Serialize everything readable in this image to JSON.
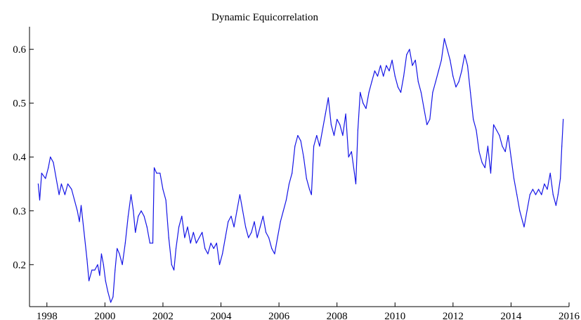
{
  "chart_data": {
    "type": "line",
    "title": "Dynamic Equicorrelation",
    "xlabel": "",
    "ylabel": "",
    "xlim": [
      1997.4,
      2016.0
    ],
    "ylim": [
      0.122,
      0.642
    ],
    "x_ticks": [
      1998,
      2000,
      2002,
      2004,
      2006,
      2008,
      2010,
      2012,
      2014,
      2016
    ],
    "y_ticks": [
      0.2,
      0.3,
      0.4,
      0.5,
      0.6
    ],
    "x_tick_labels": [
      "1998",
      "2000",
      "2002",
      "2004",
      "2006",
      "2008",
      "2010",
      "2012",
      "2014",
      "2016"
    ],
    "y_tick_labels": [
      "0.2",
      "0.3",
      "0.4",
      "0.5",
      "0.6"
    ],
    "grid": false,
    "series": [
      {
        "color": "#1414e6",
        "points": [
          [
            1997.7,
            0.35
          ],
          [
            1997.75,
            0.32
          ],
          [
            1997.82,
            0.37
          ],
          [
            1997.95,
            0.36
          ],
          [
            1998.05,
            0.38
          ],
          [
            1998.12,
            0.4
          ],
          [
            1998.22,
            0.39
          ],
          [
            1998.32,
            0.36
          ],
          [
            1998.42,
            0.33
          ],
          [
            1998.5,
            0.35
          ],
          [
            1998.62,
            0.33
          ],
          [
            1998.72,
            0.35
          ],
          [
            1998.85,
            0.34
          ],
          [
            1998.95,
            0.32
          ],
          [
            1999.05,
            0.3
          ],
          [
            1999.12,
            0.28
          ],
          [
            1999.18,
            0.31
          ],
          [
            1999.3,
            0.25
          ],
          [
            1999.38,
            0.21
          ],
          [
            1999.45,
            0.17
          ],
          [
            1999.55,
            0.19
          ],
          [
            1999.65,
            0.19
          ],
          [
            1999.75,
            0.2
          ],
          [
            1999.82,
            0.18
          ],
          [
            1999.88,
            0.22
          ],
          [
            1999.95,
            0.2
          ],
          [
            2000.02,
            0.17
          ],
          [
            2000.1,
            0.15
          ],
          [
            2000.2,
            0.13
          ],
          [
            2000.28,
            0.14
          ],
          [
            2000.35,
            0.19
          ],
          [
            2000.42,
            0.23
          ],
          [
            2000.5,
            0.22
          ],
          [
            2000.6,
            0.2
          ],
          [
            2000.7,
            0.24
          ],
          [
            2000.8,
            0.29
          ],
          [
            2000.9,
            0.33
          ],
          [
            2000.98,
            0.3
          ],
          [
            2001.05,
            0.26
          ],
          [
            2001.15,
            0.29
          ],
          [
            2001.25,
            0.3
          ],
          [
            2001.35,
            0.29
          ],
          [
            2001.45,
            0.27
          ],
          [
            2001.55,
            0.24
          ],
          [
            2001.65,
            0.24
          ],
          [
            2001.7,
            0.38
          ],
          [
            2001.78,
            0.37
          ],
          [
            2001.9,
            0.37
          ],
          [
            2002.0,
            0.34
          ],
          [
            2002.1,
            0.32
          ],
          [
            2002.2,
            0.25
          ],
          [
            2002.3,
            0.2
          ],
          [
            2002.38,
            0.19
          ],
          [
            2002.45,
            0.23
          ],
          [
            2002.55,
            0.27
          ],
          [
            2002.65,
            0.29
          ],
          [
            2002.75,
            0.25
          ],
          [
            2002.85,
            0.27
          ],
          [
            2002.95,
            0.24
          ],
          [
            2003.05,
            0.26
          ],
          [
            2003.15,
            0.24
          ],
          [
            2003.25,
            0.25
          ],
          [
            2003.35,
            0.26
          ],
          [
            2003.45,
            0.23
          ],
          [
            2003.55,
            0.22
          ],
          [
            2003.65,
            0.24
          ],
          [
            2003.75,
            0.23
          ],
          [
            2003.85,
            0.24
          ],
          [
            2003.95,
            0.2
          ],
          [
            2004.05,
            0.22
          ],
          [
            2004.15,
            0.25
          ],
          [
            2004.25,
            0.28
          ],
          [
            2004.35,
            0.29
          ],
          [
            2004.45,
            0.27
          ],
          [
            2004.55,
            0.3
          ],
          [
            2004.65,
            0.33
          ],
          [
            2004.75,
            0.3
          ],
          [
            2004.85,
            0.27
          ],
          [
            2004.95,
            0.25
          ],
          [
            2005.05,
            0.26
          ],
          [
            2005.15,
            0.28
          ],
          [
            2005.25,
            0.25
          ],
          [
            2005.35,
            0.27
          ],
          [
            2005.45,
            0.29
          ],
          [
            2005.55,
            0.26
          ],
          [
            2005.65,
            0.25
          ],
          [
            2005.75,
            0.23
          ],
          [
            2005.85,
            0.22
          ],
          [
            2005.95,
            0.25
          ],
          [
            2006.05,
            0.28
          ],
          [
            2006.15,
            0.3
          ],
          [
            2006.25,
            0.32
          ],
          [
            2006.35,
            0.35
          ],
          [
            2006.45,
            0.37
          ],
          [
            2006.55,
            0.42
          ],
          [
            2006.65,
            0.44
          ],
          [
            2006.75,
            0.43
          ],
          [
            2006.85,
            0.4
          ],
          [
            2006.95,
            0.36
          ],
          [
            2007.05,
            0.34
          ],
          [
            2007.12,
            0.33
          ],
          [
            2007.2,
            0.42
          ],
          [
            2007.3,
            0.44
          ],
          [
            2007.4,
            0.42
          ],
          [
            2007.5,
            0.45
          ],
          [
            2007.6,
            0.48
          ],
          [
            2007.7,
            0.51
          ],
          [
            2007.8,
            0.46
          ],
          [
            2007.9,
            0.44
          ],
          [
            2008.0,
            0.47
          ],
          [
            2008.1,
            0.46
          ],
          [
            2008.2,
            0.44
          ],
          [
            2008.3,
            0.48
          ],
          [
            2008.4,
            0.4
          ],
          [
            2008.5,
            0.41
          ],
          [
            2008.6,
            0.37
          ],
          [
            2008.65,
            0.35
          ],
          [
            2008.72,
            0.45
          ],
          [
            2008.8,
            0.52
          ],
          [
            2008.9,
            0.5
          ],
          [
            2009.0,
            0.49
          ],
          [
            2009.1,
            0.52
          ],
          [
            2009.2,
            0.54
          ],
          [
            2009.3,
            0.56
          ],
          [
            2009.4,
            0.55
          ],
          [
            2009.5,
            0.57
          ],
          [
            2009.6,
            0.55
          ],
          [
            2009.7,
            0.57
          ],
          [
            2009.8,
            0.56
          ],
          [
            2009.9,
            0.58
          ],
          [
            2010.0,
            0.55
          ],
          [
            2010.1,
            0.53
          ],
          [
            2010.2,
            0.52
          ],
          [
            2010.3,
            0.55
          ],
          [
            2010.4,
            0.59
          ],
          [
            2010.5,
            0.6
          ],
          [
            2010.6,
            0.57
          ],
          [
            2010.7,
            0.58
          ],
          [
            2010.8,
            0.54
          ],
          [
            2010.9,
            0.52
          ],
          [
            2011.0,
            0.49
          ],
          [
            2011.1,
            0.46
          ],
          [
            2011.2,
            0.47
          ],
          [
            2011.3,
            0.52
          ],
          [
            2011.4,
            0.54
          ],
          [
            2011.5,
            0.56
          ],
          [
            2011.6,
            0.58
          ],
          [
            2011.7,
            0.62
          ],
          [
            2011.8,
            0.6
          ],
          [
            2011.9,
            0.58
          ],
          [
            2012.0,
            0.55
          ],
          [
            2012.1,
            0.53
          ],
          [
            2012.2,
            0.54
          ],
          [
            2012.3,
            0.56
          ],
          [
            2012.4,
            0.59
          ],
          [
            2012.5,
            0.57
          ],
          [
            2012.6,
            0.52
          ],
          [
            2012.7,
            0.47
          ],
          [
            2012.8,
            0.45
          ],
          [
            2012.9,
            0.41
          ],
          [
            2013.0,
            0.39
          ],
          [
            2013.1,
            0.38
          ],
          [
            2013.2,
            0.42
          ],
          [
            2013.3,
            0.37
          ],
          [
            2013.4,
            0.46
          ],
          [
            2013.5,
            0.45
          ],
          [
            2013.6,
            0.44
          ],
          [
            2013.7,
            0.42
          ],
          [
            2013.8,
            0.41
          ],
          [
            2013.9,
            0.44
          ],
          [
            2014.0,
            0.4
          ],
          [
            2014.1,
            0.36
          ],
          [
            2014.2,
            0.33
          ],
          [
            2014.3,
            0.3
          ],
          [
            2014.4,
            0.28
          ],
          [
            2014.45,
            0.27
          ],
          [
            2014.55,
            0.3
          ],
          [
            2014.65,
            0.33
          ],
          [
            2014.75,
            0.34
          ],
          [
            2014.85,
            0.33
          ],
          [
            2014.95,
            0.34
          ],
          [
            2015.05,
            0.33
          ],
          [
            2015.15,
            0.35
          ],
          [
            2015.25,
            0.34
          ],
          [
            2015.35,
            0.37
          ],
          [
            2015.45,
            0.33
          ],
          [
            2015.55,
            0.31
          ],
          [
            2015.62,
            0.33
          ],
          [
            2015.7,
            0.36
          ],
          [
            2015.75,
            0.42
          ],
          [
            2015.8,
            0.47
          ]
        ]
      }
    ]
  }
}
